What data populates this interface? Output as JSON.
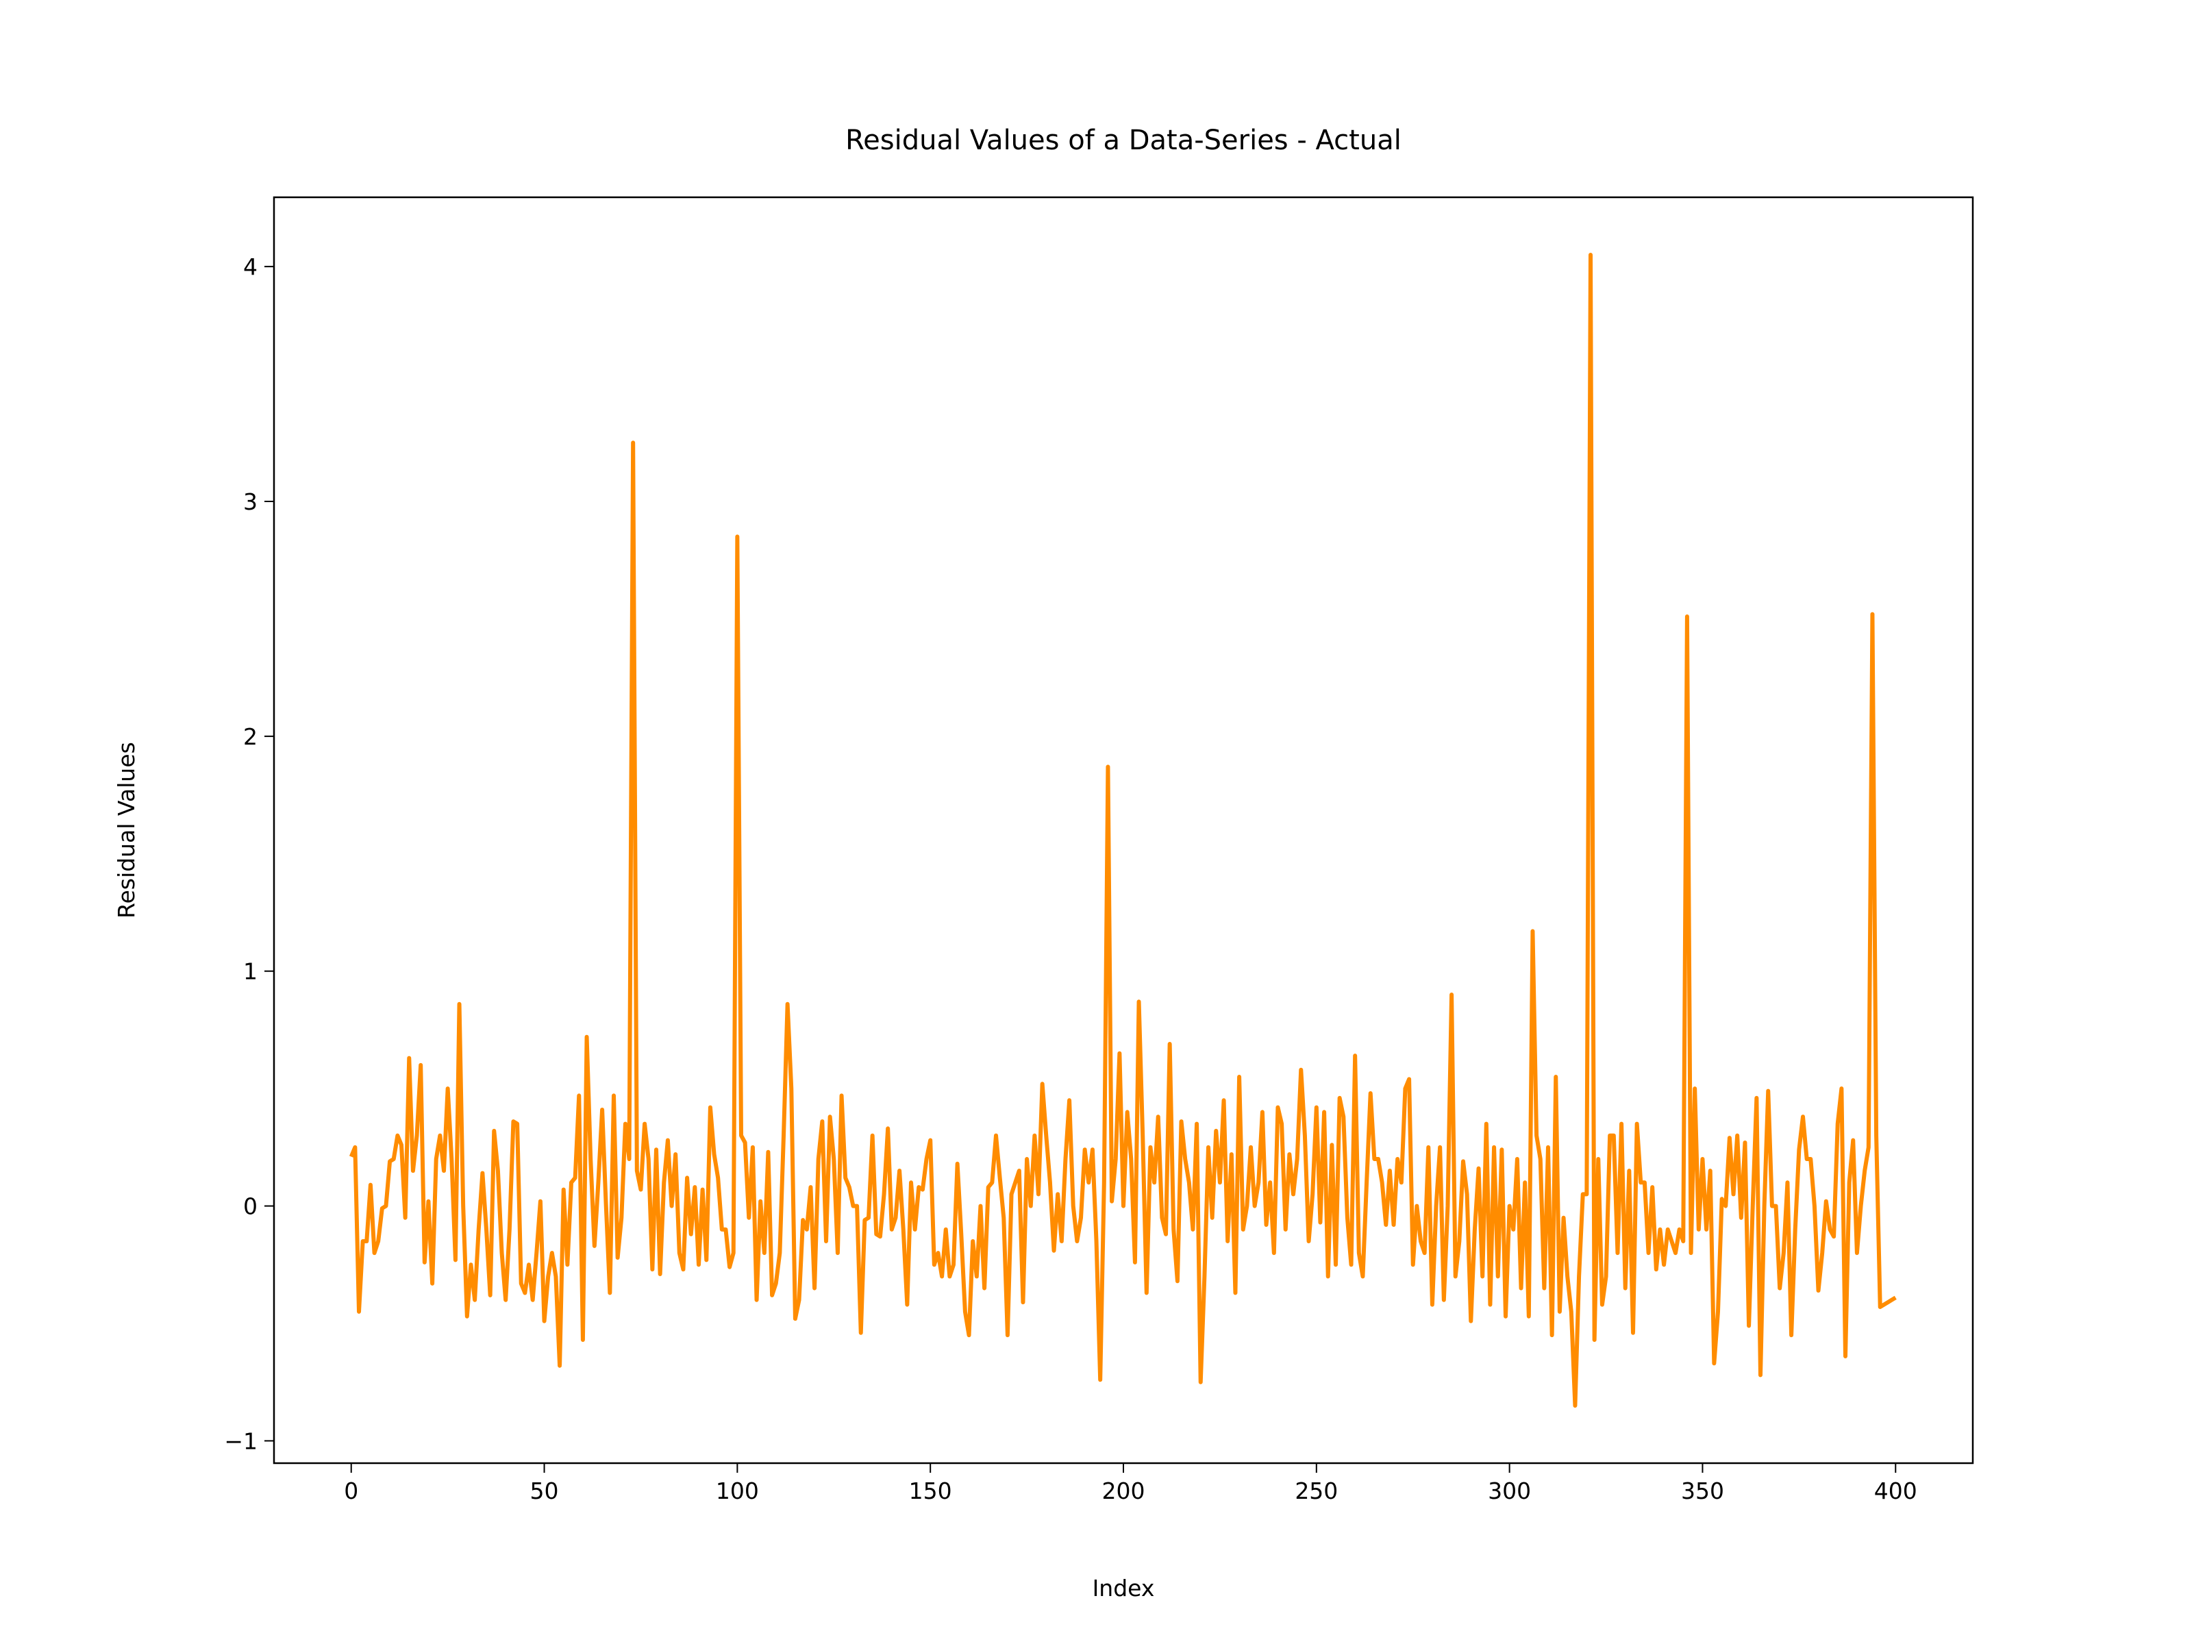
{
  "chart_data": {
    "type": "line",
    "title": "Residual Values of a Data-Series - Actual",
    "x_label": "Index",
    "y_label": "Residual Values",
    "color": "#ff8c00",
    "x": [
      0,
      1,
      2,
      3,
      4,
      5,
      6,
      7,
      8,
      9,
      10,
      11,
      12,
      13,
      14,
      15,
      16,
      17,
      18,
      19,
      20,
      21,
      22,
      23,
      24,
      25,
      26,
      27,
      28,
      29,
      30,
      31,
      32,
      33,
      34,
      35,
      36,
      37,
      38,
      39,
      40,
      41,
      42,
      43,
      44,
      45,
      46,
      47,
      48,
      49,
      50,
      51,
      52,
      53,
      54,
      55,
      56,
      57,
      58,
      59,
      60,
      61,
      62,
      63,
      64,
      65,
      66,
      67,
      68,
      69,
      70,
      71,
      72,
      73,
      74,
      75,
      76,
      77,
      78,
      79,
      80,
      81,
      82,
      83,
      84,
      85,
      86,
      87,
      88,
      89,
      90,
      91,
      92,
      93,
      94,
      95,
      96,
      97,
      98,
      99,
      100,
      101,
      102,
      103,
      104,
      105,
      106,
      107,
      108,
      109,
      110,
      111,
      112,
      113,
      114,
      115,
      116,
      117,
      118,
      119,
      120,
      121,
      122,
      123,
      124,
      125,
      126,
      127,
      128,
      129,
      130,
      131,
      132,
      133,
      134,
      135,
      136,
      137,
      138,
      139,
      140,
      141,
      142,
      143,
      144,
      145,
      146,
      147,
      148,
      149,
      150,
      151,
      152,
      153,
      154,
      155,
      156,
      157,
      158,
      159,
      160,
      161,
      162,
      163,
      164,
      165,
      166,
      167,
      168,
      169,
      170,
      171,
      172,
      173,
      174,
      175,
      176,
      177,
      178,
      179,
      180,
      181,
      182,
      183,
      184,
      185,
      186,
      187,
      188,
      189,
      190,
      191,
      192,
      193,
      194,
      195,
      196,
      197,
      198,
      199,
      200,
      201,
      202,
      203,
      204,
      205,
      206,
      207,
      208,
      209,
      210,
      211,
      212,
      213,
      214,
      215,
      216,
      217,
      218,
      219,
      220,
      221,
      222,
      223,
      224,
      225,
      226,
      227,
      228,
      229,
      230,
      231,
      232,
      233,
      234,
      235,
      236,
      237,
      238,
      239,
      240,
      241,
      242,
      243,
      244,
      245,
      246,
      247,
      248,
      249,
      250,
      251,
      252,
      253,
      254,
      255,
      256,
      257,
      258,
      259,
      260,
      261,
      262,
      263,
      264,
      265,
      266,
      267,
      268,
      269,
      270,
      271,
      272,
      273,
      274,
      275,
      276,
      277,
      278,
      279,
      280,
      281,
      282,
      283,
      284,
      285,
      286,
      287,
      288,
      289,
      290,
      291,
      292,
      293,
      294,
      295,
      296,
      297,
      298,
      299,
      300,
      301,
      302,
      303,
      304,
      305,
      306,
      307,
      308,
      309,
      310,
      311,
      312,
      313,
      314,
      315,
      316,
      317,
      318,
      319,
      320,
      321,
      322,
      323,
      324,
      325,
      326,
      327,
      328,
      329,
      330,
      331,
      332,
      333,
      334,
      335,
      336,
      337,
      338,
      339,
      340,
      341,
      342,
      343,
      344,
      345,
      346,
      347,
      348,
      349,
      350,
      351,
      352,
      353,
      354,
      355,
      356,
      357,
      358,
      359,
      360,
      361,
      362,
      363,
      364,
      365,
      366,
      367,
      368,
      369,
      370,
      371,
      372,
      373,
      374,
      375,
      376,
      377,
      378,
      379,
      380,
      381,
      382,
      383,
      384,
      385,
      386,
      387,
      388,
      389,
      390,
      391,
      392,
      393,
      394,
      395,
      396,
      397,
      398,
      399,
      400
    ],
    "values": [
      0.21,
      0.25,
      -0.45,
      -0.15,
      -0.15,
      0.09,
      -0.2,
      -0.15,
      -0.01,
      0.0,
      0.19,
      0.2,
      0.3,
      0.26,
      -0.05,
      0.63,
      0.15,
      0.3,
      0.6,
      -0.24,
      0.02,
      -0.33,
      0.2,
      0.3,
      0.15,
      0.5,
      0.2,
      -0.23,
      0.86,
      0.0,
      -0.47,
      -0.25,
      -0.4,
      -0.1,
      0.14,
      -0.1,
      -0.38,
      0.32,
      0.15,
      -0.2,
      -0.4,
      -0.1,
      0.36,
      0.35,
      -0.33,
      -0.37,
      -0.25,
      -0.4,
      -0.2,
      0.02,
      -0.49,
      -0.3,
      -0.2,
      -0.3,
      -0.68,
      0.07,
      -0.25,
      0.1,
      0.12,
      0.47,
      -0.57,
      0.72,
      0.2,
      -0.17,
      0.1,
      0.41,
      0.0,
      -0.37,
      0.47,
      -0.22,
      -0.05,
      0.35,
      0.2,
      3.25,
      0.15,
      0.07,
      0.35,
      0.2,
      -0.27,
      0.24,
      -0.29,
      0.1,
      0.28,
      0.0,
      0.22,
      -0.2,
      -0.27,
      0.12,
      -0.12,
      0.08,
      -0.25,
      0.07,
      -0.23,
      0.42,
      0.22,
      0.12,
      -0.1,
      -0.1,
      -0.26,
      -0.2,
      2.85,
      0.3,
      0.27,
      -0.05,
      0.25,
      -0.4,
      0.02,
      -0.2,
      0.23,
      -0.38,
      -0.33,
      -0.2,
      0.3,
      0.86,
      0.5,
      -0.48,
      -0.4,
      -0.06,
      -0.1,
      0.08,
      -0.35,
      0.2,
      0.36,
      -0.15,
      0.38,
      0.2,
      -0.2,
      0.47,
      0.12,
      0.08,
      0.0,
      0.0,
      -0.54,
      -0.06,
      -0.05,
      0.3,
      -0.12,
      -0.13,
      0.05,
      0.33,
      -0.1,
      -0.05,
      0.15,
      -0.1,
      -0.42,
      0.1,
      -0.1,
      0.08,
      0.07,
      0.2,
      0.28,
      -0.25,
      -0.2,
      -0.3,
      -0.1,
      -0.3,
      -0.25,
      0.18,
      -0.12,
      -0.45,
      -0.55,
      -0.15,
      -0.3,
      0.0,
      -0.35,
      0.08,
      0.1,
      0.3,
      0.12,
      -0.05,
      -0.55,
      0.05,
      0.1,
      0.15,
      -0.41,
      0.2,
      0.0,
      0.3,
      0.05,
      0.52,
      0.3,
      0.1,
      -0.19,
      0.05,
      -0.15,
      0.2,
      0.45,
      0.0,
      -0.15,
      -0.05,
      0.24,
      0.1,
      0.24,
      -0.15,
      -0.74,
      0.1,
      1.87,
      0.02,
      0.2,
      0.65,
      0.0,
      0.4,
      0.2,
      -0.24,
      0.87,
      0.3,
      -0.37,
      0.25,
      0.1,
      0.38,
      -0.05,
      -0.12,
      0.69,
      -0.1,
      -0.32,
      0.36,
      0.2,
      0.1,
      -0.1,
      0.35,
      -0.75,
      -0.3,
      0.25,
      -0.05,
      0.32,
      0.1,
      0.45,
      -0.15,
      0.22,
      -0.37,
      0.55,
      -0.1,
      0.0,
      0.25,
      0.0,
      0.1,
      0.4,
      -0.08,
      0.1,
      -0.2,
      0.42,
      0.35,
      -0.1,
      0.22,
      0.05,
      0.2,
      0.58,
      0.3,
      -0.15,
      0.05,
      0.42,
      -0.07,
      0.4,
      -0.3,
      0.26,
      -0.25,
      0.46,
      0.38,
      -0.05,
      -0.25,
      0.64,
      -0.2,
      -0.3,
      0.1,
      0.48,
      0.2,
      0.2,
      0.1,
      -0.08,
      0.15,
      -0.08,
      0.2,
      0.1,
      0.5,
      0.54,
      -0.25,
      0.0,
      -0.15,
      -0.2,
      0.25,
      -0.42,
      0.0,
      0.25,
      -0.4,
      0.0,
      0.9,
      -0.3,
      -0.15,
      0.19,
      0.05,
      -0.49,
      -0.1,
      0.16,
      -0.3,
      0.35,
      -0.42,
      0.25,
      -0.3,
      0.24,
      -0.47,
      0.0,
      -0.1,
      0.2,
      -0.35,
      0.1,
      -0.47,
      1.17,
      0.3,
      0.2,
      -0.35,
      0.25,
      -0.55,
      0.55,
      -0.45,
      -0.05,
      -0.3,
      -0.45,
      -0.85,
      -0.3,
      0.05,
      0.05,
      4.05,
      -0.57,
      0.2,
      -0.42,
      -0.3,
      0.3,
      0.3,
      -0.2,
      0.35,
      -0.35,
      0.15,
      -0.54,
      0.35,
      0.1,
      0.1,
      -0.2,
      0.08,
      -0.27,
      -0.1,
      -0.25,
      -0.1,
      -0.15,
      -0.2,
      -0.1,
      -0.15,
      2.51,
      -0.2,
      0.5,
      -0.1,
      0.2,
      -0.1,
      0.15,
      -0.67,
      -0.45,
      0.03,
      0.0,
      0.29,
      0.05,
      0.3,
      -0.05,
      0.27,
      -0.51,
      0.0,
      0.46,
      -0.72,
      0.0,
      0.49,
      0.0,
      0.0,
      -0.35,
      -0.2,
      0.1,
      -0.55,
      -0.1,
      0.24,
      0.38,
      0.2,
      0.2,
      0.0,
      -0.36,
      -0.2,
      0.02,
      -0.1,
      -0.13,
      0.35,
      0.5,
      -0.64,
      0.1,
      0.28,
      -0.2,
      0.0,
      0.15,
      0.25,
      2.52,
      0.3,
      -0.43,
      -0.42,
      -0.41,
      -0.4,
      -0.39
    ],
    "xlim": [
      -20,
      420
    ],
    "ylim": [
      -1.095,
      4.295
    ],
    "xticks": [
      0,
      50,
      100,
      150,
      200,
      250,
      300,
      350,
      400
    ],
    "yticks": [
      {
        "value": -1,
        "label": "−1"
      },
      0,
      1,
      2,
      3,
      4
    ],
    "grid": false
  }
}
